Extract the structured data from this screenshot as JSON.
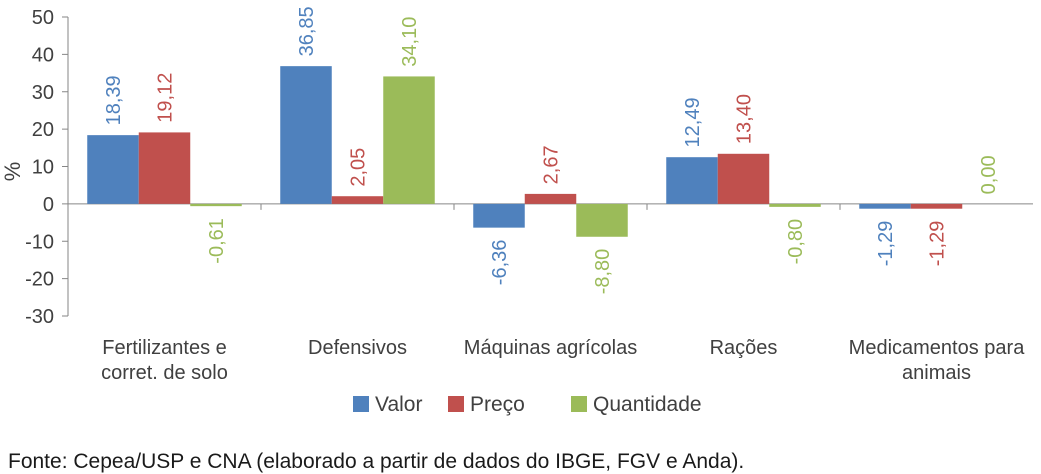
{
  "chart_data": {
    "type": "bar",
    "ylabel": "%",
    "ylim": [
      -30,
      50
    ],
    "yticks": [
      50,
      40,
      30,
      20,
      10,
      0,
      -10,
      -20,
      -30
    ],
    "categories": [
      [
        "Fertilizantes e",
        "corret. de solo"
      ],
      [
        "Defensivos"
      ],
      [
        "Máquinas agrícolas"
      ],
      [
        "Rações"
      ],
      [
        "Medicamentos para",
        "animais"
      ]
    ],
    "series": [
      {
        "name": "Valor",
        "color": "#4F81BD",
        "values": [
          18.39,
          36.85,
          -6.36,
          12.49,
          -1.29
        ],
        "labels": [
          "18,39",
          "36,85",
          "-6,36",
          "12,49",
          "-1,29"
        ]
      },
      {
        "name": "Preço",
        "color": "#C0504D",
        "values": [
          19.12,
          2.05,
          2.67,
          13.4,
          -1.29
        ],
        "labels": [
          "19,12",
          "2,05",
          "2,67",
          "13,40",
          "-1,29"
        ]
      },
      {
        "name": "Quantidade",
        "color": "#9BBB59",
        "values": [
          -0.61,
          34.1,
          -8.8,
          -0.8,
          0.0
        ],
        "labels": [
          "-0,61",
          "34,10",
          "-8,80",
          "-0,80",
          "0,00"
        ]
      }
    ],
    "legend": "bottom",
    "grid": false
  },
  "source_note": "Fonte: Cepea/USP e CNA (elaborado a partir de dados do IBGE, FGV e Anda)."
}
